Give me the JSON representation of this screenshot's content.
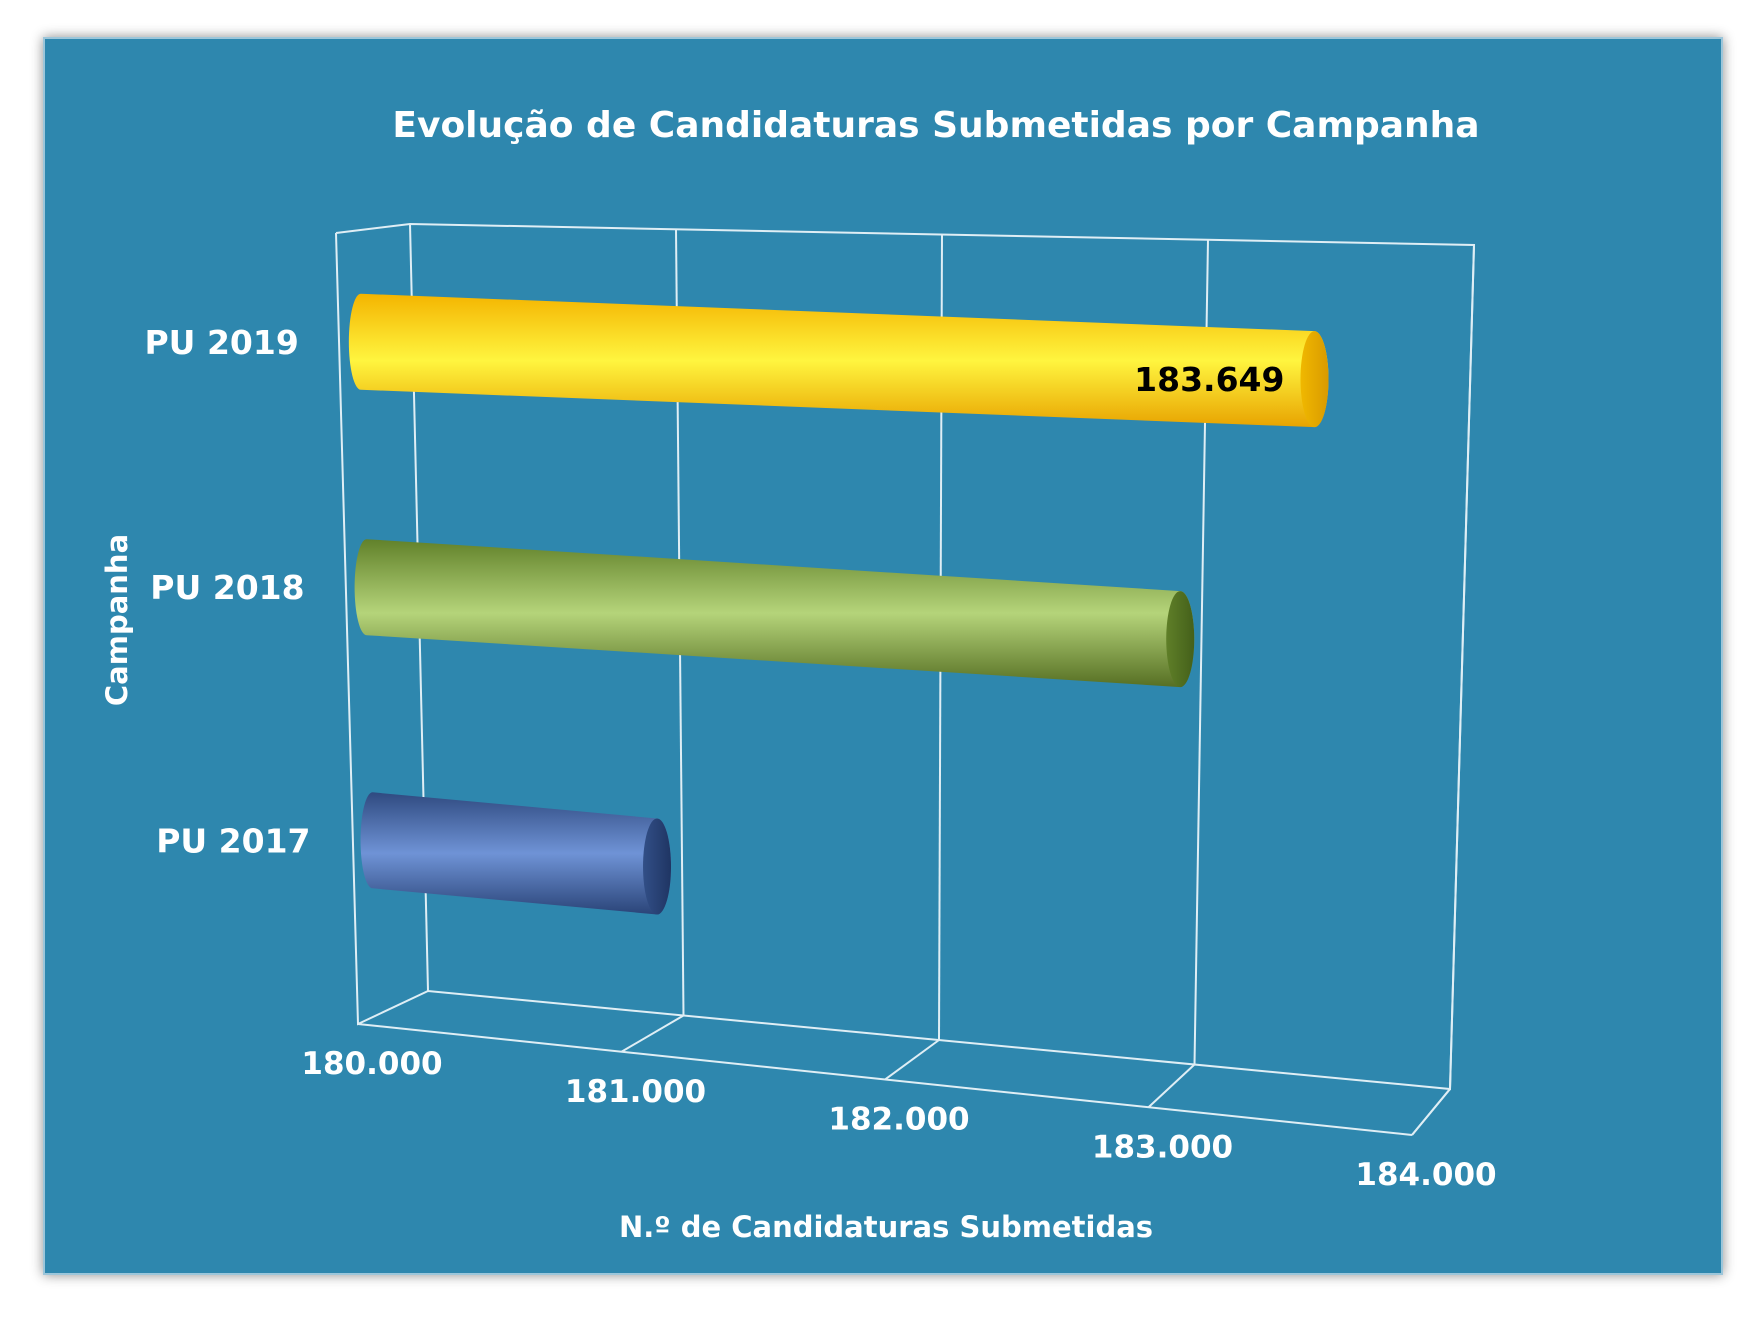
{
  "chart_data": {
    "type": "bar",
    "orientation": "horizontal",
    "style": "3d-cylinder",
    "title": "Evolução de Candidaturas Submetidas por Campanha",
    "xlabel": "N.º de Candidaturas Submetidas",
    "ylabel": "Campanha",
    "categories": [
      "PU 2017",
      "PU 2018",
      "PU 2019"
    ],
    "values": [
      181150,
      183160,
      183649
    ],
    "data_labels": [
      "",
      "",
      "183.649"
    ],
    "xlim": [
      180000,
      184000
    ],
    "x_ticks": [
      180000,
      181000,
      182000,
      183000,
      184000
    ],
    "x_tick_labels": [
      "180.000",
      "181.000",
      "182.000",
      "183.000",
      "184.000"
    ],
    "grid": true,
    "legend": "none",
    "colors": {
      "background": "#2E87AE",
      "PU 2017": "#4F73B8",
      "PU 2018": "#8CB04A",
      "PU 2019": "#F6CB0B",
      "text": "#FFFFFF",
      "data_label_text": "#000000"
    }
  }
}
